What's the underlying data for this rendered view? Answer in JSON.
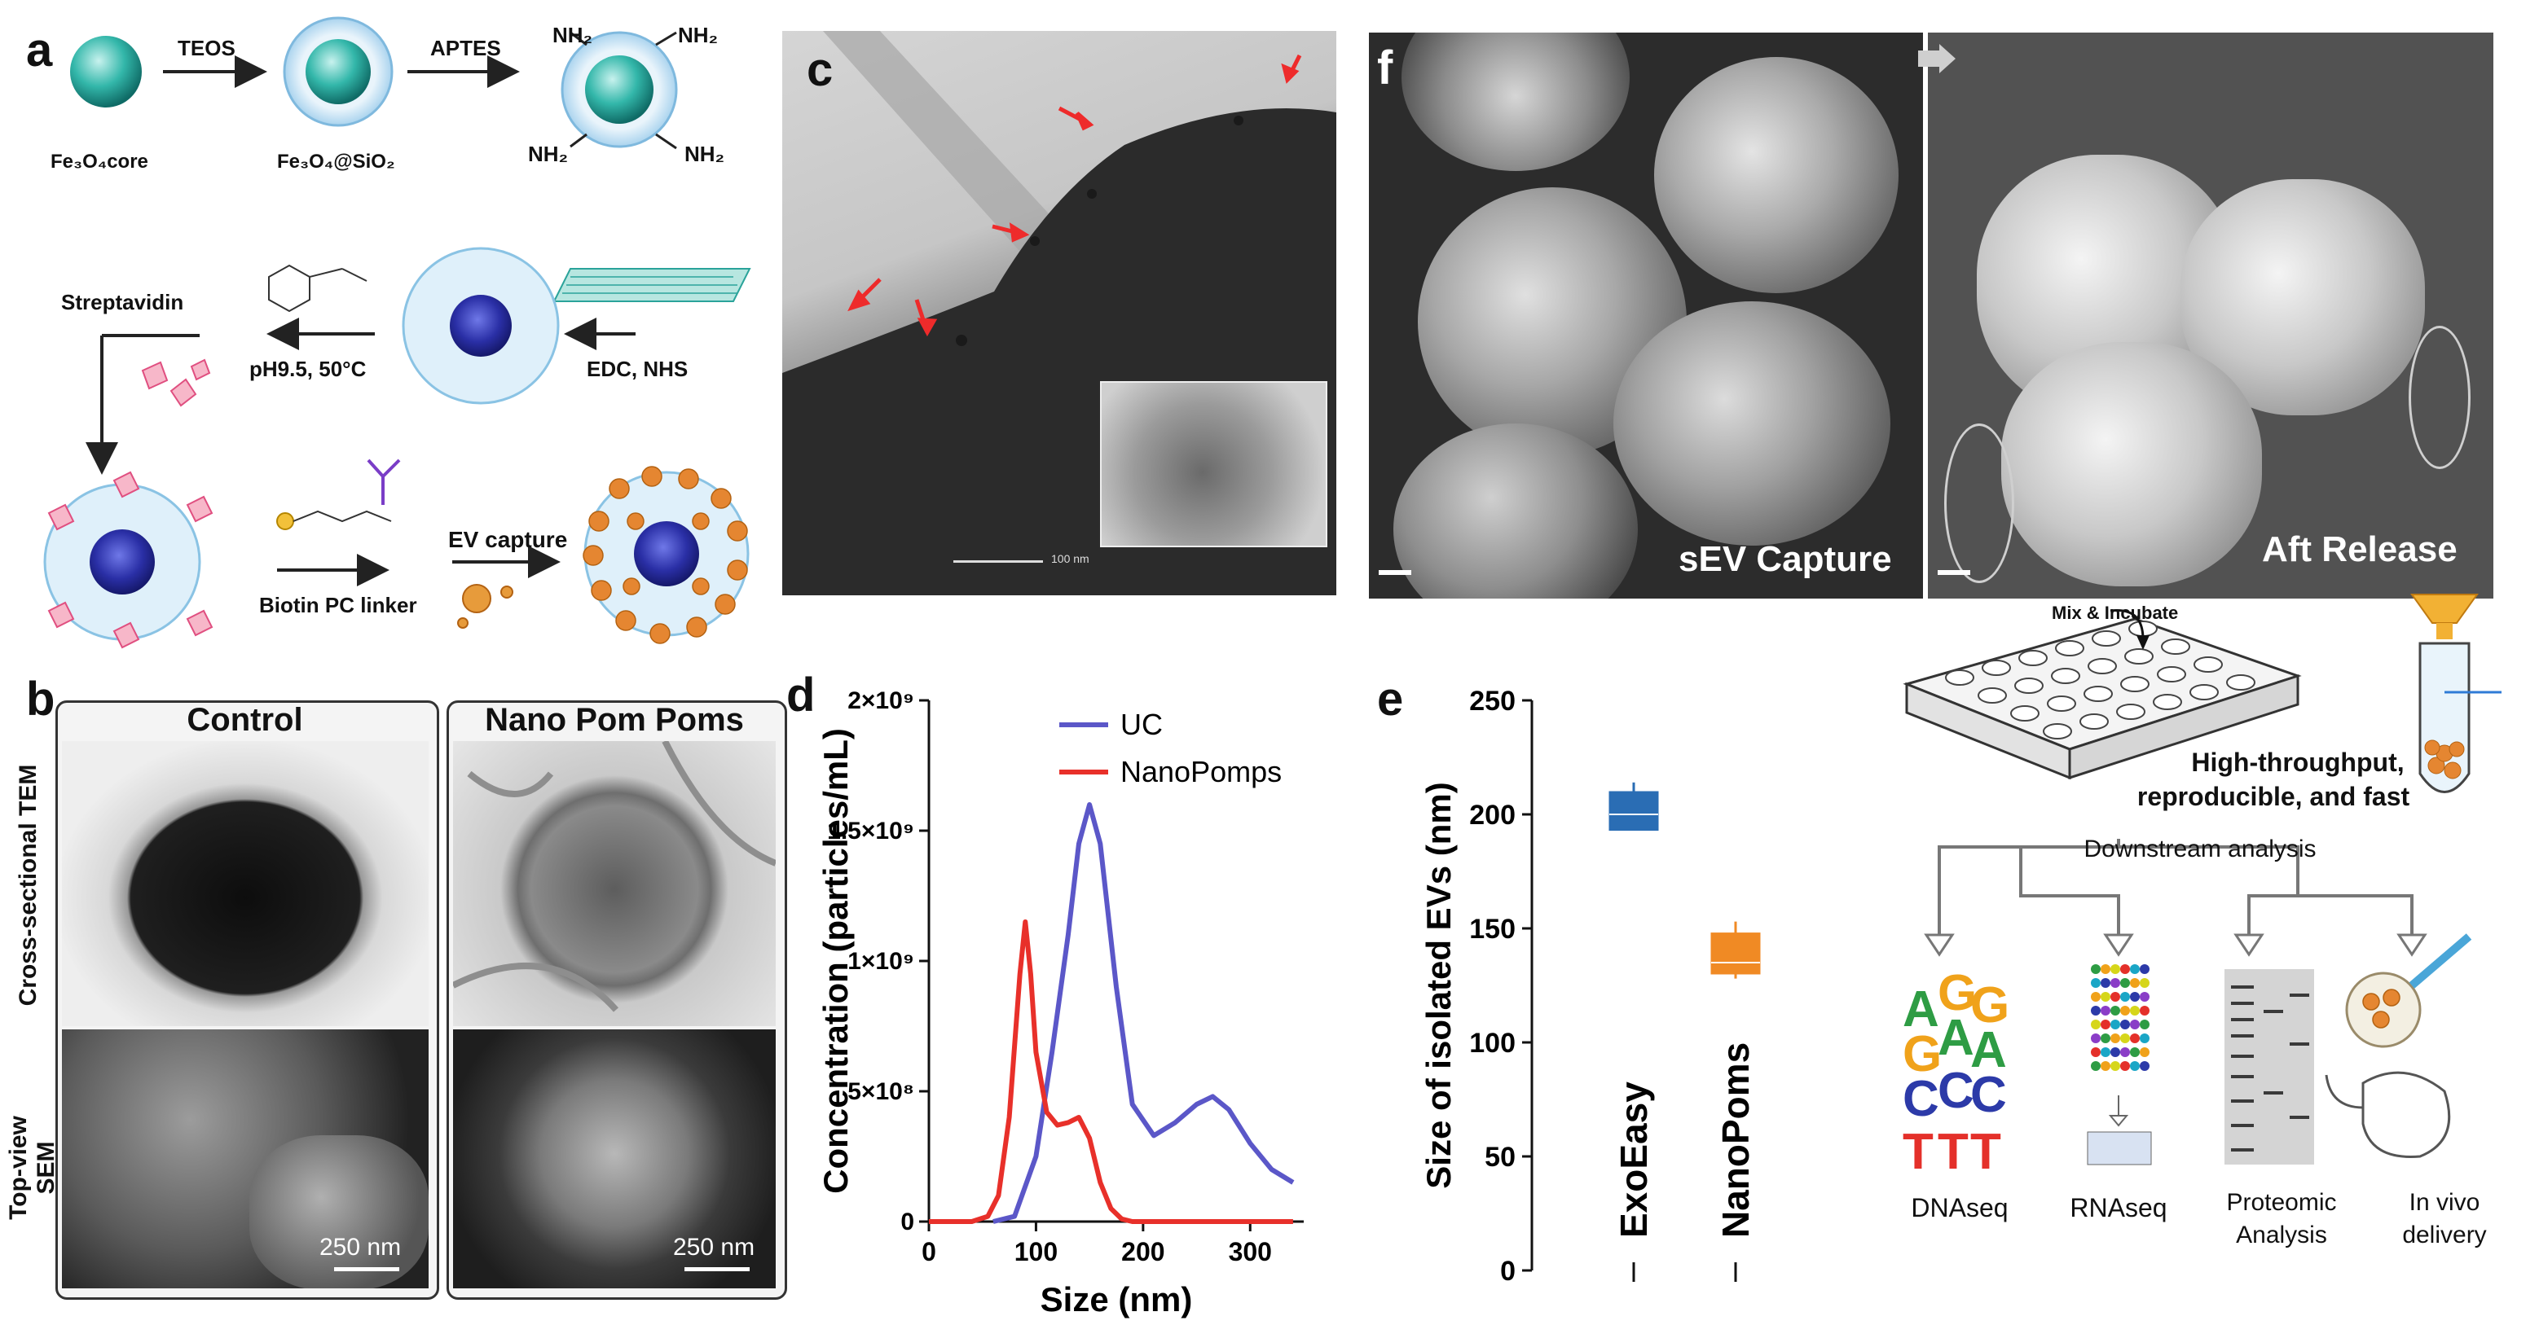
{
  "panels": {
    "a": "a",
    "b": "b",
    "c": "c",
    "d": "d",
    "e": "e",
    "f": "f"
  },
  "panel_a": {
    "teos": "TEOS",
    "aptes": "APTES",
    "fe3o4_core": "Fe₃O₄core",
    "fe3o4_sio2": "Fe₃O₄@SiO₂",
    "nh2": "NH₂",
    "streptavidin": "Streptavidin",
    "ph_condition": "pH9.5, 50°C",
    "edc_nhs": "EDC, NHS",
    "ev_capture": "EV capture",
    "biotin_linker": "Biotin PC linker"
  },
  "panel_b": {
    "control": "Control",
    "nanopompoms": "Nano Pom Poms",
    "row1": "Cross-sectional TEM",
    "row2": "Top-view SEM",
    "scale_left": "250 nm",
    "scale_right": "250 nm"
  },
  "panel_c": {
    "scale": "100 nm"
  },
  "panel_f": {
    "left_label": "sEV Capture",
    "right_label": "Aft Release",
    "mix_incubate": "Mix & Incubate",
    "htp_line1": "High-throughput,",
    "htp_line2": "reproducible, and fast",
    "downstream": "Downstream  analysis",
    "dnaseq": "DNAseq",
    "rnaseq": "RNAseq",
    "proteomic1": "Proteomic",
    "proteomic2": "Analysis",
    "invivo1": "In vivo",
    "invivo2": "delivery"
  },
  "chart_data": [
    {
      "type": "line",
      "xlabel": "Size (nm)",
      "ylabel": "Concentration (particles/mL)",
      "xlim": [
        0,
        350
      ],
      "ylim": [
        0,
        2000000000
      ],
      "x_ticks": [
        "0",
        "100",
        "200",
        "300"
      ],
      "y_ticks": [
        "0",
        "5×10⁸",
        "1×10⁹",
        "1.5×10⁹",
        "2×10⁹"
      ],
      "legend_position": "top-right",
      "series": [
        {
          "name": "UC",
          "color": "#5b57c8",
          "x": [
            60,
            80,
            100,
            115,
            130,
            140,
            150,
            160,
            175,
            190,
            210,
            230,
            250,
            265,
            280,
            300,
            320,
            340
          ],
          "y": [
            0,
            20000000,
            250000000,
            650000000,
            1100000000,
            1450000000,
            1600000000,
            1450000000,
            900000000,
            450000000,
            330000000,
            380000000,
            450000000,
            480000000,
            430000000,
            300000000,
            200000000,
            150000000
          ]
        },
        {
          "name": "NanoPomps",
          "color": "#e8302a",
          "x": [
            0,
            40,
            55,
            65,
            75,
            85,
            90,
            95,
            100,
            110,
            120,
            130,
            140,
            150,
            160,
            170,
            180,
            190,
            200,
            300,
            340
          ],
          "y": [
            0,
            0,
            20000000,
            100000000,
            400000000,
            950000000,
            1150000000,
            950000000,
            650000000,
            420000000,
            370000000,
            380000000,
            400000000,
            320000000,
            150000000,
            50000000,
            10000000,
            0,
            0,
            0,
            0
          ]
        }
      ]
    },
    {
      "type": "box",
      "ylabel": "Size of isolated EVs (nm)",
      "ylim": [
        0,
        250
      ],
      "y_ticks": [
        "0",
        "50",
        "100",
        "150",
        "200",
        "250"
      ],
      "categories": [
        "ExoEasy",
        "NanoPoms"
      ],
      "boxes": [
        {
          "name": "ExoEasy",
          "color": "#2a6db4",
          "min": 193,
          "q1": 193,
          "median": 200,
          "q3": 210,
          "max": 214
        },
        {
          "name": "NanoPoms",
          "color": "#f08a24",
          "min": 128,
          "q1": 130,
          "median": 135,
          "q3": 148,
          "max": 153
        }
      ]
    }
  ]
}
